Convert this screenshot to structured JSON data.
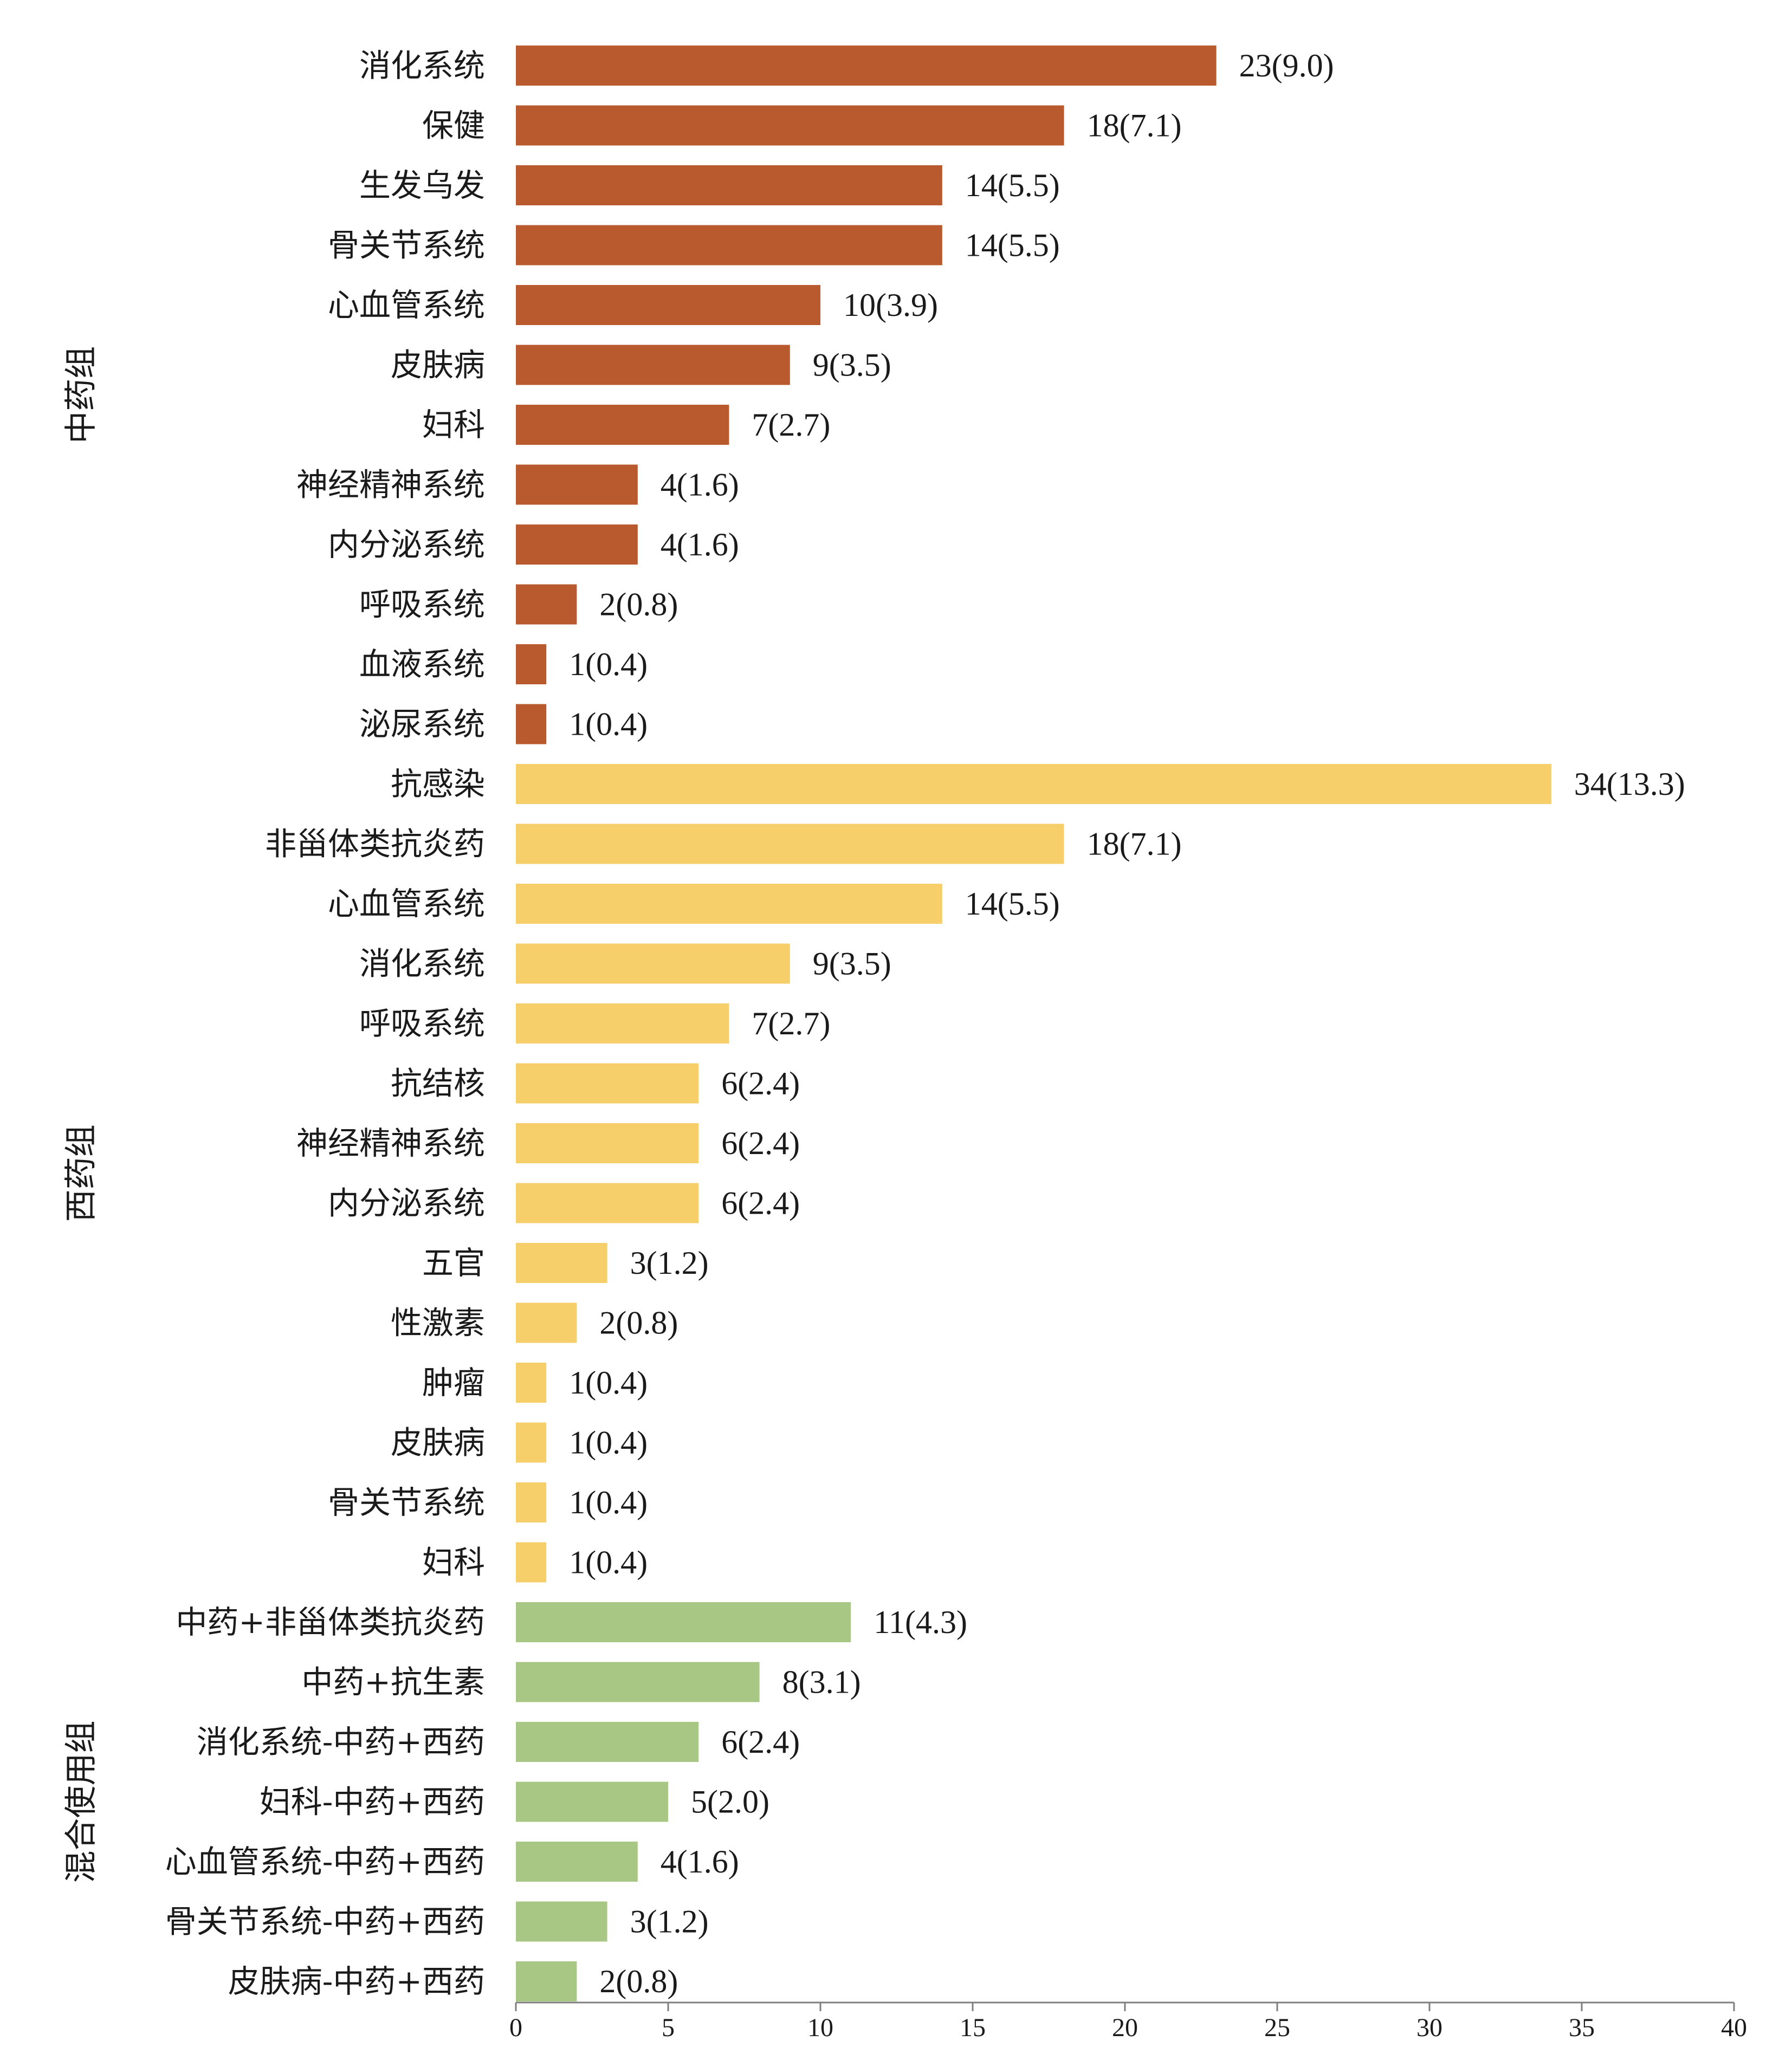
{
  "chart_data": {
    "type": "bar",
    "orientation": "horizontal",
    "xlim": [
      0,
      40
    ],
    "x_ticks": [
      0,
      5,
      10,
      15,
      20,
      25,
      30,
      35,
      40
    ],
    "grid": false,
    "legend": "none",
    "groups": [
      {
        "label": "中药组",
        "color": "#B85A2E",
        "items": [
          {
            "category": "消化系统",
            "value": 23,
            "label": "23(9.0)"
          },
          {
            "category": "保健",
            "value": 18,
            "label": "18(7.1)"
          },
          {
            "category": "生发乌发",
            "value": 14,
            "label": "14(5.5)"
          },
          {
            "category": "骨关节系统",
            "value": 14,
            "label": "14(5.5)"
          },
          {
            "category": "心血管系统",
            "value": 10,
            "label": "10(3.9)"
          },
          {
            "category": "皮肤病",
            "value": 9,
            "label": "9(3.5)"
          },
          {
            "category": "妇科",
            "value": 7,
            "label": "7(2.7)"
          },
          {
            "category": "神经精神系统",
            "value": 4,
            "label": "4(1.6)"
          },
          {
            "category": "内分泌系统",
            "value": 4,
            "label": "4(1.6)"
          },
          {
            "category": "呼吸系统",
            "value": 2,
            "label": "2(0.8)"
          },
          {
            "category": "血液系统",
            "value": 1,
            "label": "1(0.4)"
          },
          {
            "category": "泌尿系统",
            "value": 1,
            "label": "1(0.4)"
          }
        ]
      },
      {
        "label": "西药组",
        "color": "#F6CF6B",
        "items": [
          {
            "category": "抗感染",
            "value": 34,
            "label": "34(13.3)"
          },
          {
            "category": "非甾体类抗炎药",
            "value": 18,
            "label": "18(7.1)"
          },
          {
            "category": "心血管系统",
            "value": 14,
            "label": "14(5.5)"
          },
          {
            "category": "消化系统",
            "value": 9,
            "label": "9(3.5)"
          },
          {
            "category": "呼吸系统",
            "value": 7,
            "label": "7(2.7)"
          },
          {
            "category": "抗结核",
            "value": 6,
            "label": "6(2.4)"
          },
          {
            "category": "神经精神系统",
            "value": 6,
            "label": "6(2.4)"
          },
          {
            "category": "内分泌系统",
            "value": 6,
            "label": "6(2.4)"
          },
          {
            "category": "五官",
            "value": 3,
            "label": "3(1.2)"
          },
          {
            "category": "性激素",
            "value": 2,
            "label": "2(0.8)"
          },
          {
            "category": "肿瘤",
            "value": 1,
            "label": "1(0.4)"
          },
          {
            "category": "皮肤病",
            "value": 1,
            "label": "1(0.4)"
          },
          {
            "category": "骨关节系统",
            "value": 1,
            "label": "1(0.4)"
          },
          {
            "category": "妇科",
            "value": 1,
            "label": "1(0.4)"
          }
        ]
      },
      {
        "label": "混合使用组",
        "color": "#A8C785",
        "items": [
          {
            "category": "中药+非甾体类抗炎药",
            "value": 11,
            "label": "11(4.3)"
          },
          {
            "category": "中药+抗生素",
            "value": 8,
            "label": "8(3.1)"
          },
          {
            "category": "消化系统-中药+西药",
            "value": 6,
            "label": "6(2.4)"
          },
          {
            "category": "妇科-中药+西药",
            "value": 5,
            "label": "5(2.0)"
          },
          {
            "category": "心血管系统-中药+西药",
            "value": 4,
            "label": "4(1.6)"
          },
          {
            "category": "骨关节系统-中药+西药",
            "value": 3,
            "label": "3(1.2)"
          },
          {
            "category": "皮肤病-中药+西药",
            "value": 2,
            "label": "2(0.8)"
          }
        ]
      }
    ]
  }
}
